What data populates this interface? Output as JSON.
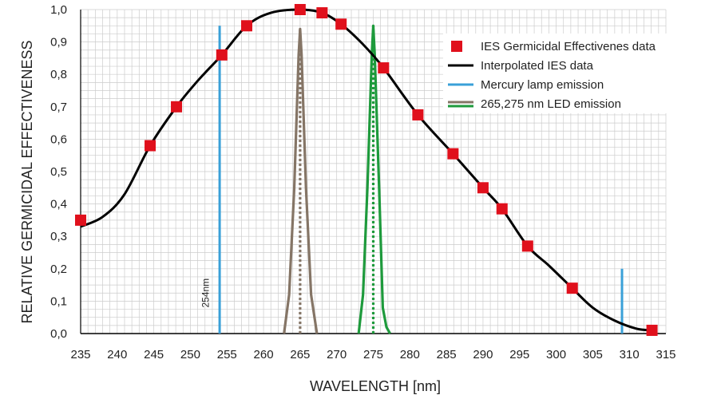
{
  "chart_data": {
    "type": "line",
    "xlabel": "WAVELENGTH [nm]",
    "ylabel": "RELATIVE GERMICIDAL EFFECTIVENESS",
    "xlim": [
      235,
      315
    ],
    "ylim": [
      0,
      1.0
    ],
    "x_ticks": [
      "235",
      "240",
      "245",
      "250",
      "255",
      "260",
      "265",
      "270",
      "275",
      "280",
      "285",
      "290",
      "295",
      "300",
      "305",
      "310",
      "315"
    ],
    "y_ticks": [
      "0,0",
      "0,1",
      "0,2",
      "0,3",
      "0,4",
      "0,5",
      "0,6",
      "0,7",
      "0,8",
      "0,9",
      "1,0"
    ],
    "grid": true,
    "legend_position": "top-right",
    "colors": {
      "ies_points": "#e0101c",
      "interpolated": "#000000",
      "mercury": "#3aa0d8",
      "led_265": "#857566",
      "led_275": "#1e9a3c",
      "grid": "#cccccc"
    },
    "series": [
      {
        "name": "IES Germicidal Effectivenes data",
        "kind": "scatter",
        "x": [
          235,
          244.5,
          248.1,
          254.3,
          257.7,
          265.0,
          268.0,
          270.6,
          276.4,
          281.1,
          285.9,
          290.0,
          292.6,
          296.1,
          302.2,
          313.1
        ],
        "y": [
          0.35,
          0.58,
          0.7,
          0.86,
          0.95,
          1.0,
          0.99,
          0.955,
          0.82,
          0.675,
          0.555,
          0.45,
          0.385,
          0.27,
          0.14,
          0.01
        ]
      },
      {
        "name": "Interpolated IES data",
        "kind": "line",
        "x": [
          235,
          238,
          241,
          244.5,
          248.1,
          251,
          254.3,
          257.7,
          261,
          265.0,
          268.0,
          270.6,
          273.5,
          276.4,
          281.1,
          285.9,
          290.0,
          292.6,
          296.1,
          299,
          302.2,
          305,
          308,
          311,
          313.1
        ],
        "y": [
          0.33,
          0.36,
          0.43,
          0.58,
          0.7,
          0.78,
          0.86,
          0.95,
          0.99,
          1.0,
          0.99,
          0.955,
          0.895,
          0.82,
          0.675,
          0.555,
          0.45,
          0.385,
          0.27,
          0.21,
          0.14,
          0.08,
          0.04,
          0.015,
          0.01
        ]
      },
      {
        "name": "Mercury lamp emission",
        "kind": "lines",
        "segments": [
          {
            "x": 254,
            "y": [
              0,
              0.95
            ]
          },
          {
            "x": 309,
            "y": [
              0,
              0.2
            ]
          }
        ]
      },
      {
        "name": "265,275 nm LED emission",
        "kind": "peaks",
        "peaks": [
          {
            "color_key": "led_265",
            "x": [
              262.8,
              263.5,
              264.2,
              264.8,
              265.0,
              265.2,
              265.8,
              266.5,
              267.3
            ],
            "y": [
              0,
              0.12,
              0.45,
              0.86,
              0.94,
              0.86,
              0.45,
              0.12,
              0
            ],
            "center": 265
          },
          {
            "color_key": "led_275",
            "x": [
              273.0,
              273.6,
              274.2,
              274.8,
              275.0,
              275.2,
              275.8,
              276.3,
              276.8,
              277.3
            ],
            "y": [
              0,
              0.12,
              0.45,
              0.86,
              0.95,
              0.86,
              0.45,
              0.08,
              0.02,
              0
            ],
            "center": 275
          }
        ]
      }
    ],
    "annotations": [
      {
        "text": "254nm",
        "x": 252.5,
        "y": 0.08,
        "rotation": -90
      }
    ]
  }
}
